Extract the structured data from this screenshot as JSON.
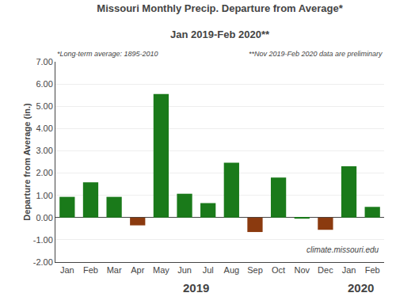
{
  "chart_data": {
    "type": "bar",
    "title": "Missouri Monthly Precip. Departure from Average*",
    "subtitle": "Jan 2019-Feb 2020**",
    "ylabel": "Departure from Average (in.)",
    "categories": [
      "Jan",
      "Feb",
      "Mar",
      "Apr",
      "May",
      "Jun",
      "Jul",
      "Aug",
      "Sep",
      "Oct",
      "Nov",
      "Dec",
      "Jan",
      "Feb"
    ],
    "values": [
      0.93,
      1.58,
      0.93,
      -0.35,
      5.55,
      1.07,
      0.65,
      2.46,
      -0.65,
      1.8,
      -0.05,
      -0.55,
      2.3,
      0.48
    ],
    "colors": [
      "#1a7a1a",
      "#1a7a1a",
      "#1a7a1a",
      "#8B3A0F",
      "#1a7a1a",
      "#1a7a1a",
      "#1a7a1a",
      "#1a7a1a",
      "#8B3A0F",
      "#1a7a1a",
      "#1a7a1a",
      "#8B3A0F",
      "#1a7a1a",
      "#1a7a1a"
    ],
    "ylim": [
      -2.0,
      7.0
    ],
    "yticks": [
      {
        "value": -2.0,
        "label": "-2.00"
      },
      {
        "value": -1.0,
        "label": "-1.00"
      },
      {
        "value": 0.0,
        "label": "0.00"
      },
      {
        "value": 1.0,
        "label": "1.00"
      },
      {
        "value": 2.0,
        "label": "2.00"
      },
      {
        "value": 3.0,
        "label": "3.00"
      },
      {
        "value": 4.0,
        "label": "4.00"
      },
      {
        "value": 5.0,
        "label": "5.00"
      },
      {
        "value": 6.0,
        "label": "6.00"
      },
      {
        "value": 7.0,
        "label": "7.00"
      }
    ],
    "grid": true,
    "annotations": [
      "*Long-term average: 1895-2010",
      "**Nov 2019-Feb 2020 data are preliminary",
      "climate.missouri.edu",
      "2019",
      "2020"
    ]
  }
}
